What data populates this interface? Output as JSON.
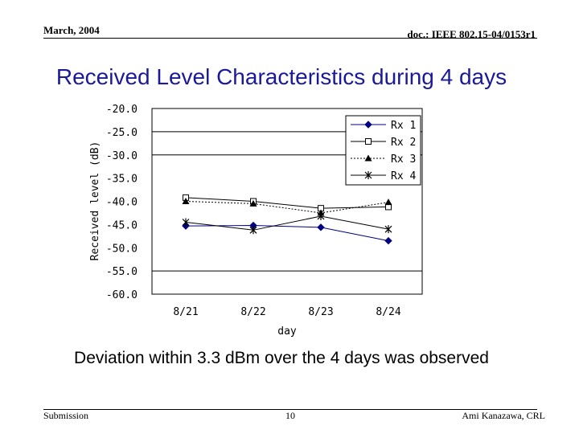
{
  "header": {
    "date": "March, 2004",
    "doc": "doc.: IEEE 802.15-04/0153r1"
  },
  "slide": {
    "title": "Received Level Characteristics during 4 days",
    "caption": "Deviation within 3.3 dBm over the 4 days was observed"
  },
  "footer": {
    "left": "Submission",
    "page": "10",
    "right": "Ami Kanazawa, CRL"
  },
  "colors": {
    "title": "#1a1a99",
    "rx1": "#000080",
    "plot_bg": "#ffffff"
  },
  "chart_data": {
    "type": "line",
    "categories": [
      "8/21",
      "8/22",
      "8/23",
      "8/24"
    ],
    "ytick_labels": [
      "-20.0",
      "-25.0",
      "-30.0",
      "-35.0",
      "-40.0",
      "-45.0",
      "-50.0",
      "-55.0",
      "-60.0"
    ],
    "yticks": [
      -20,
      -25,
      -30,
      -35,
      -40,
      -45,
      -50,
      -55,
      -60
    ],
    "ylim": [
      -60,
      -20
    ],
    "gridlines": [
      -25,
      -30,
      -55
    ],
    "xlabel": "day",
    "ylabel": "Received level (dB)",
    "legend_position": "top-right",
    "series": [
      {
        "name": "Rx 1",
        "values": [
          -45.3,
          -45.2,
          -45.6,
          -48.5
        ],
        "marker": "diamond-filled",
        "line": "solid"
      },
      {
        "name": "Rx 2",
        "values": [
          -39.2,
          -40.0,
          -41.5,
          -41.2
        ],
        "marker": "square-open",
        "line": "solid"
      },
      {
        "name": "Rx 3",
        "values": [
          -40.0,
          -40.5,
          -42.5,
          -40.2
        ],
        "marker": "triangle-filled",
        "line": "dotted"
      },
      {
        "name": "Rx 4",
        "values": [
          -44.5,
          -46.2,
          -43.2,
          -46.0
        ],
        "marker": "star",
        "line": "solid"
      }
    ]
  }
}
